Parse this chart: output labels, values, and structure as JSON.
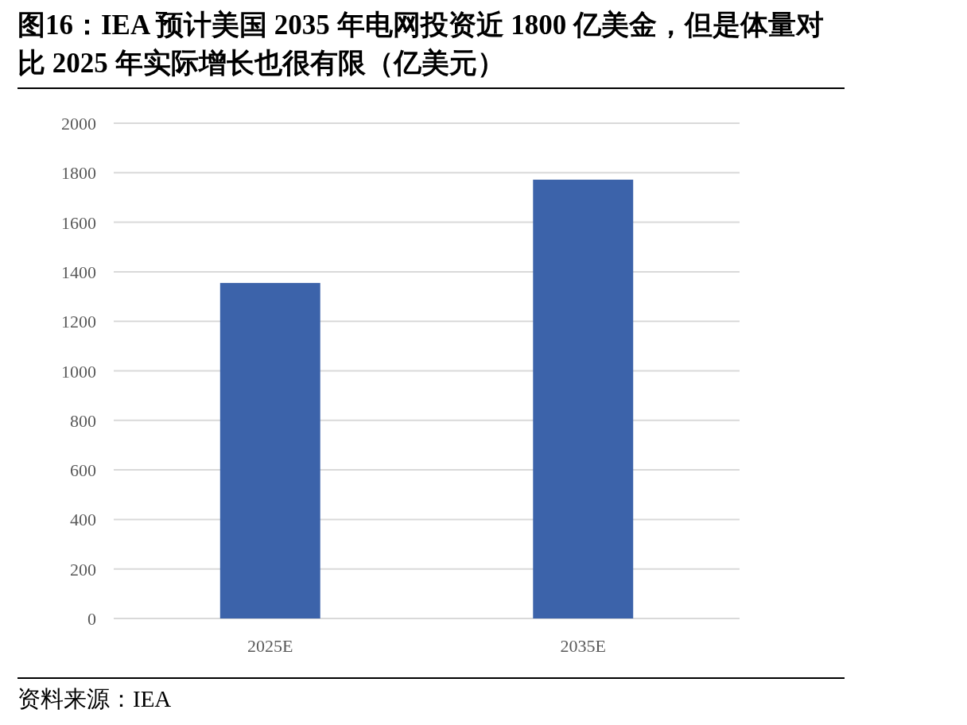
{
  "chart_data": {
    "type": "bar",
    "title": "图16：IEA 预计美国 2035 年电网投资近 1800 亿美金，但是体量对比 2025 年实际增长也很有限（亿美元）",
    "categories": [
      "2025E",
      "2035E"
    ],
    "values": [
      1355,
      1772
    ],
    "color": "#3c63aa",
    "ylim": [
      0,
      2000
    ],
    "yticks": [
      0,
      200,
      400,
      600,
      800,
      1000,
      1200,
      1400,
      1600,
      1800,
      2000
    ],
    "grid": "y",
    "annotations": [
      "资料来源：IEA"
    ]
  }
}
